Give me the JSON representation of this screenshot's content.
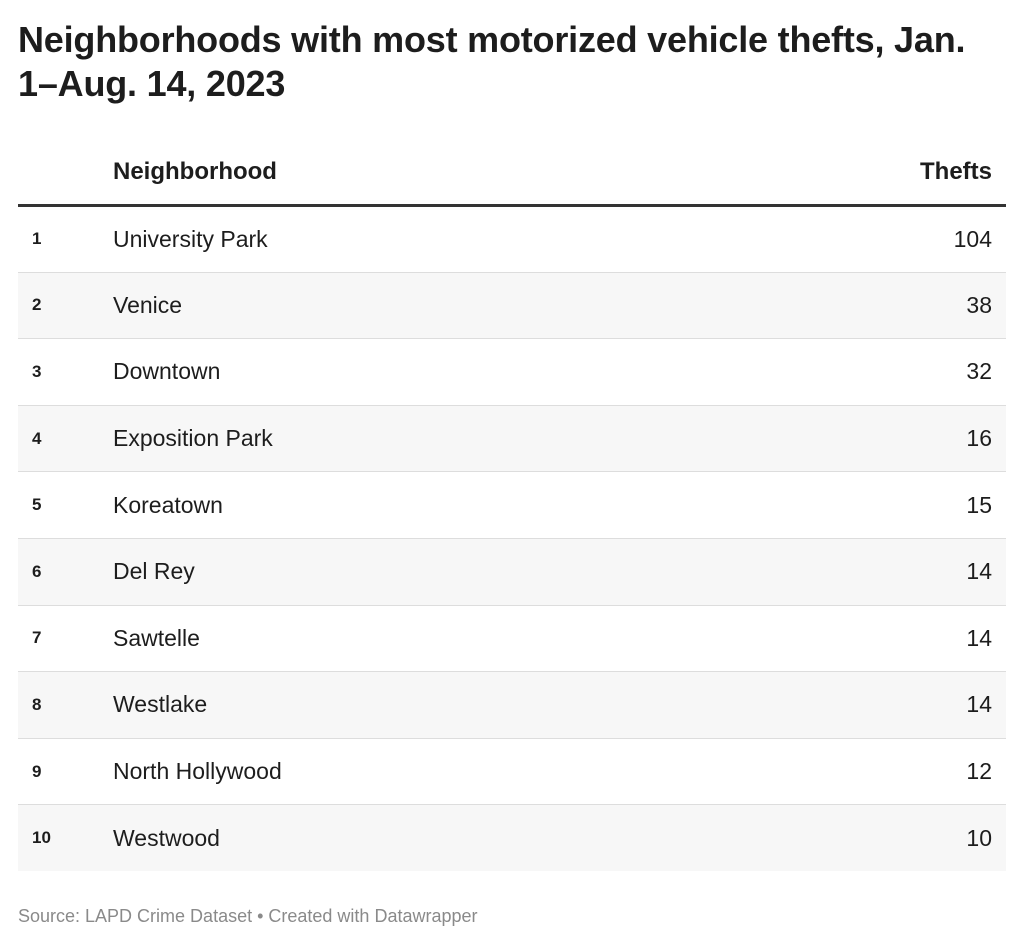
{
  "chart_data": {
    "type": "table",
    "title": "Neighborhoods with most motorized vehicle thefts, Jan. 1–Aug. 14, 2023",
    "columns": [
      "",
      "Neighborhood",
      "Thefts"
    ],
    "rows": [
      {
        "rank": "1",
        "neighborhood": "University Park",
        "thefts": 104
      },
      {
        "rank": "2",
        "neighborhood": "Venice",
        "thefts": 38
      },
      {
        "rank": "3",
        "neighborhood": "Downtown",
        "thefts": 32
      },
      {
        "rank": "4",
        "neighborhood": "Exposition Park",
        "thefts": 16
      },
      {
        "rank": "5",
        "neighborhood": "Koreatown",
        "thefts": 15
      },
      {
        "rank": "6",
        "neighborhood": "Del Rey",
        "thefts": 14
      },
      {
        "rank": "7",
        "neighborhood": "Sawtelle",
        "thefts": 14
      },
      {
        "rank": "8",
        "neighborhood": "Westlake",
        "thefts": 14
      },
      {
        "rank": "9",
        "neighborhood": "North Hollywood",
        "thefts": 12
      },
      {
        "rank": "10",
        "neighborhood": "Westwood",
        "thefts": 10
      }
    ],
    "source": "Source: LAPD Crime Dataset • Created with Datawrapper",
    "colors": {
      "text": "#1d1d1d",
      "stripe": "#f7f7f7",
      "header_rule": "#333333",
      "footer": "#8a8a8a"
    }
  }
}
